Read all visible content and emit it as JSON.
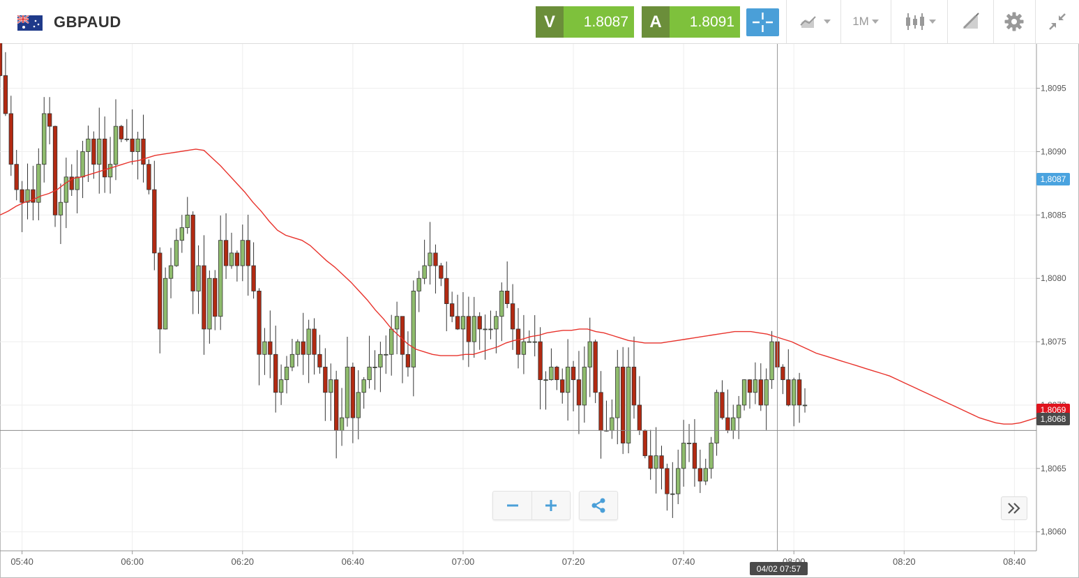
{
  "header": {
    "symbol": "GBPAUD",
    "flag": "au-gb-flag-icon",
    "sell": {
      "label": "V",
      "price": "1.8087"
    },
    "buy": {
      "label": "A",
      "price": "1.8091"
    },
    "timeframe": "1M",
    "tools": [
      "crosshair-icon",
      "chart-type-icon",
      "candlestick-icon",
      "draw-icon",
      "gear-icon",
      "collapse-icon"
    ]
  },
  "colors": {
    "up_candle": "#8fbc6d",
    "down_candle": "#b22a12",
    "moving_average": "#e8322b",
    "quote_tag": "#6b8e3a",
    "quote_value": "#7ec13c",
    "accent": "#4a9fd8"
  },
  "price_labels": {
    "ask": "1,8087",
    "ma": "1,8069",
    "cursor": "1,8068"
  },
  "cursor_time": "04/02 07:57",
  "controls": {
    "zoom_out": "minus-icon",
    "zoom_in": "plus-icon",
    "share": "share-icon",
    "scroll": "double-chevron-right-icon"
  },
  "chart_data": {
    "type": "candlestick",
    "instrument": "GBPAUD",
    "interval": "1M",
    "ylim": [
      1.80585,
      1.80985
    ],
    "y_ticks": [
      "1,8095",
      "1,8090",
      "1,8085",
      "1,8080",
      "1,8075",
      "1,8070",
      "1,8065",
      "1,8060"
    ],
    "x_ticks": [
      "05:40",
      "06:00",
      "06:20",
      "06:40",
      "07:00",
      "07:20",
      "07:40",
      "08:00",
      "08:20",
      "08:40"
    ],
    "x_range": [
      "05:36",
      "08:44"
    ],
    "grid": true,
    "crosshair": {
      "time": "07:57",
      "price": 1.8068
    },
    "close": [
      1.8096,
      1.8093,
      1.8089,
      1.8087,
      1.8086,
      1.8087,
      1.8086,
      1.8089,
      1.8093,
      1.8092,
      1.8085,
      1.8086,
      1.8088,
      1.8087,
      1.8088,
      1.809,
      1.8091,
      1.8089,
      1.8091,
      1.8088,
      1.8089,
      1.8092,
      1.8091,
      1.8091,
      1.809,
      1.8091,
      1.8089,
      1.8087,
      1.8082,
      1.8076,
      1.808,
      1.8081,
      1.8083,
      1.8084,
      1.8085,
      1.8079,
      1.8081,
      1.8076,
      1.808,
      1.8077,
      1.8083,
      1.8081,
      1.8082,
      1.8081,
      1.8083,
      1.8081,
      1.8079,
      1.8074,
      1.8075,
      1.8074,
      1.8071,
      1.8072,
      1.8073,
      1.8074,
      1.8075,
      1.8074,
      1.8076,
      1.8074,
      1.8073,
      1.8071,
      1.8072,
      1.8068,
      1.8069,
      1.8073,
      1.8069,
      1.8071,
      1.8072,
      1.8073,
      1.8073,
      1.8074,
      1.8074,
      1.8076,
      1.8077,
      1.8074,
      1.8073,
      1.8079,
      1.808,
      1.8081,
      1.8082,
      1.8081,
      1.808,
      1.8078,
      1.8077,
      1.8076,
      1.8077,
      1.8075,
      1.8077,
      1.8076,
      1.8076,
      1.8076,
      1.8077,
      1.8079,
      1.8078,
      1.8076,
      1.8074,
      1.8075,
      1.8075,
      1.8075,
      1.8072,
      1.8072,
      1.8073,
      1.8072,
      1.8071,
      1.8073,
      1.8072,
      1.807,
      1.8073,
      1.8075,
      1.8071,
      1.8068,
      1.8068,
      1.8069,
      1.8073,
      1.8067,
      1.8073,
      1.807,
      1.8068,
      1.8066,
      1.8065,
      1.8066,
      1.8065,
      1.8063,
      1.8063,
      1.8065,
      1.8067,
      1.8067,
      1.8065,
      1.8064,
      1.8065,
      1.8067,
      1.8071,
      1.8069,
      1.8068,
      1.8069,
      1.807,
      1.8072,
      1.8071,
      1.8072,
      1.807,
      1.8072,
      1.8075,
      1.8073,
      1.8072,
      1.807,
      1.8072,
      1.807,
      1.807
    ],
    "ma_series": {
      "type": "line",
      "values": [
        1.8085,
        1.80853,
        1.80857,
        1.8086,
        1.80862,
        1.80865,
        1.80867,
        1.8087,
        1.80875,
        1.80879,
        1.8088,
        1.80882,
        1.80884,
        1.80886,
        1.80888,
        1.8089,
        1.80892,
        1.80893,
        1.80895,
        1.80897,
        1.80898,
        1.80899,
        1.809,
        1.80901,
        1.80902,
        1.80901,
        1.80895,
        1.80889,
        1.80882,
        1.80875,
        1.80868,
        1.8086,
        1.80853,
        1.80845,
        1.80838,
        1.80834,
        1.80832,
        1.8083,
        1.80826,
        1.8082,
        1.80814,
        1.80809,
        1.80803,
        1.80797,
        1.8079,
        1.80783,
        1.80775,
        1.80768,
        1.8076,
        1.80754,
        1.80748,
        1.80744,
        1.80742,
        1.8074,
        1.80739,
        1.80739,
        1.80739,
        1.8074,
        1.8074,
        1.80742,
        1.80744,
        1.80746,
        1.80749,
        1.80751,
        1.80752,
        1.80754,
        1.80755,
        1.80757,
        1.80758,
        1.80759,
        1.80759,
        1.8076,
        1.8076,
        1.80758,
        1.80757,
        1.80755,
        1.80753,
        1.80751,
        1.8075,
        1.80749,
        1.80749,
        1.80749,
        1.8075,
        1.80751,
        1.80752,
        1.80753,
        1.80754,
        1.80755,
        1.80756,
        1.80757,
        1.80758,
        1.80758,
        1.80758,
        1.80757,
        1.80756,
        1.80754,
        1.80752,
        1.8075,
        1.80747,
        1.80744,
        1.80741,
        1.80739,
        1.80737,
        1.80735,
        1.80733,
        1.80731,
        1.80729,
        1.80727,
        1.80725,
        1.80723,
        1.8072,
        1.80717,
        1.80714,
        1.80711,
        1.80708,
        1.80705,
        1.80702,
        1.80699,
        1.80696,
        1.80693,
        1.8069,
        1.80688,
        1.80686,
        1.80685,
        1.80685,
        1.80686,
        1.80688,
        1.8069
      ]
    }
  }
}
